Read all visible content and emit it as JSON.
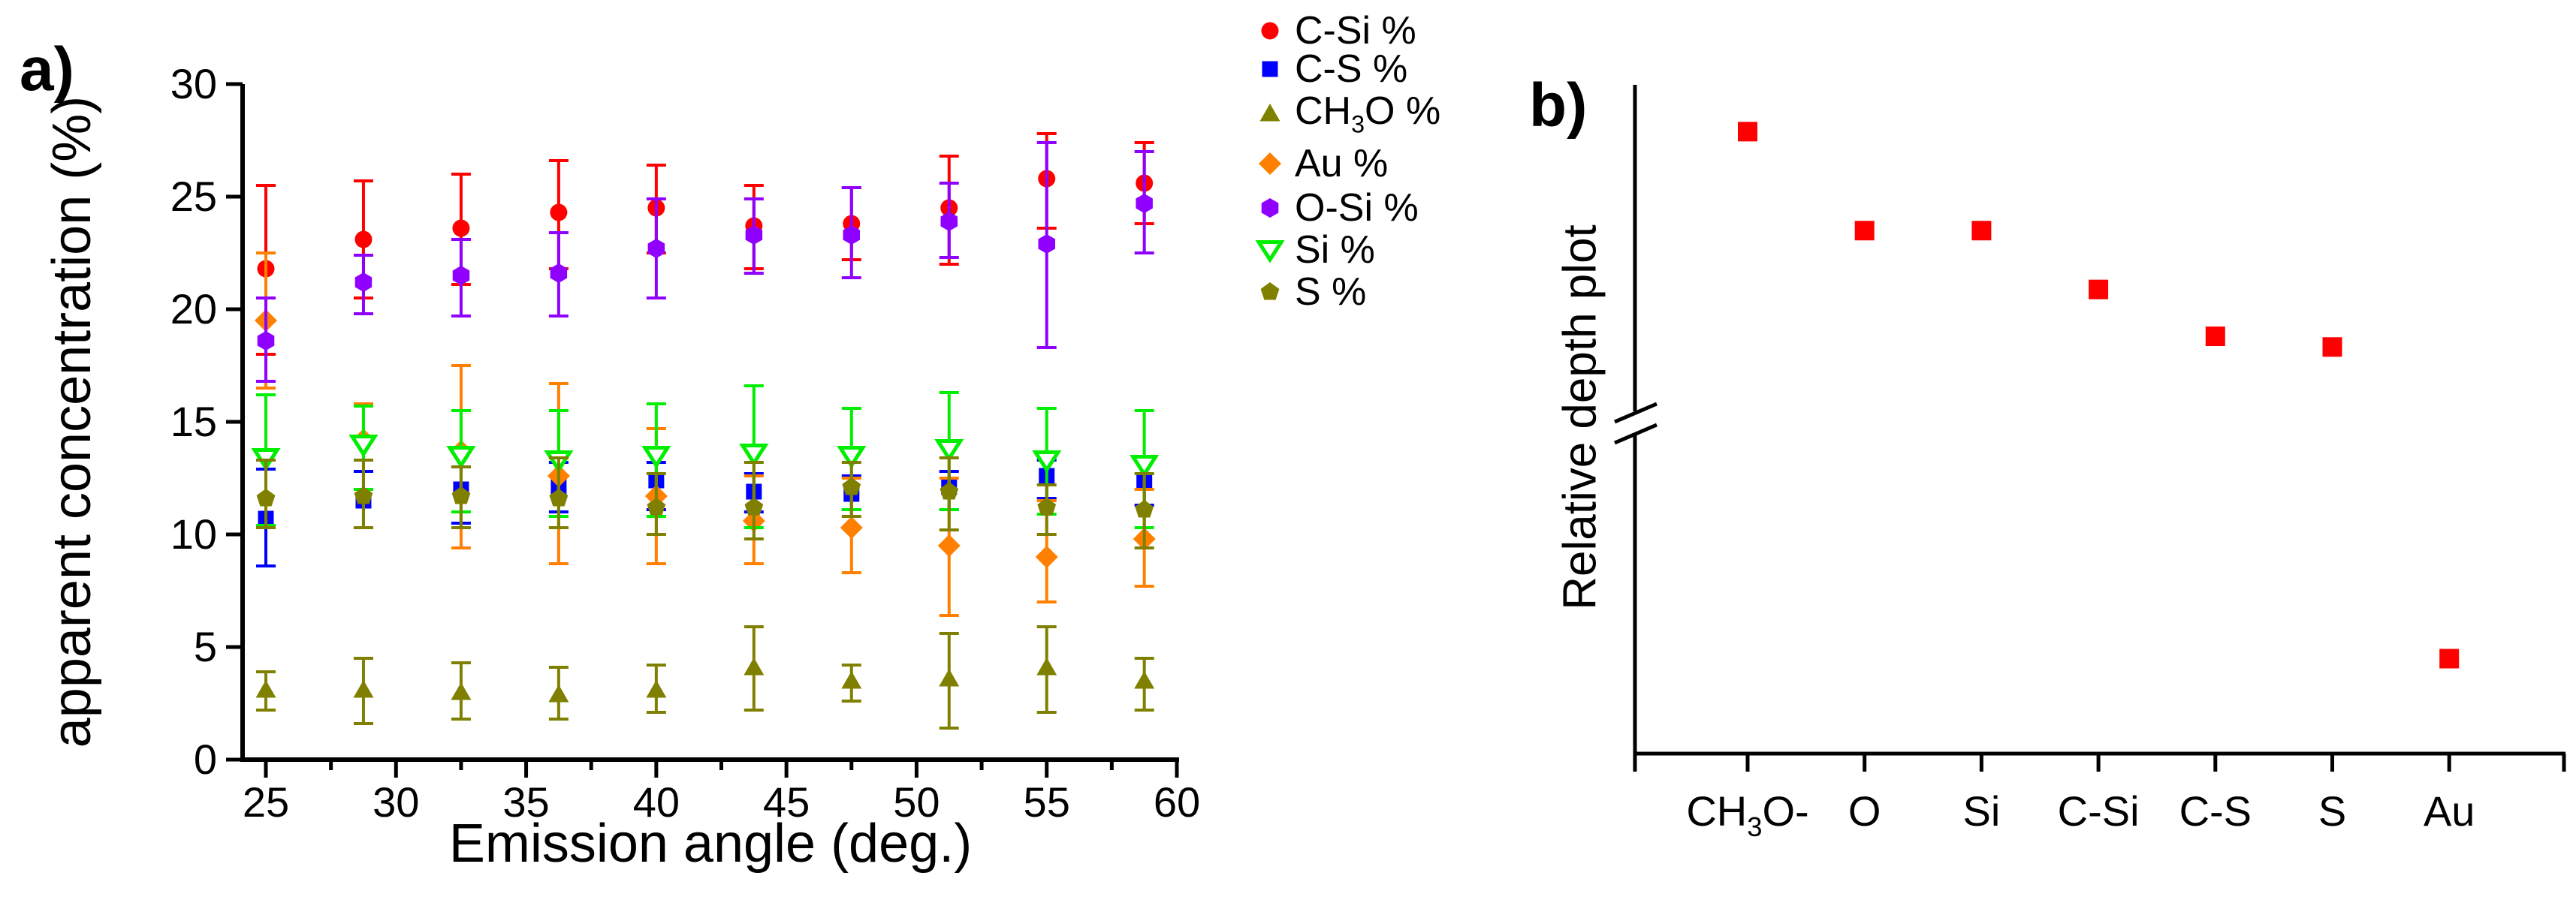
{
  "panel_a": {
    "panel_label": "a)",
    "xlabel": "Emission angle (deg.)",
    "ylabel": "apparent concentration (%)"
  },
  "panel_b": {
    "panel_label": "b)",
    "ylabel": "Relative depth plot"
  },
  "chart_data": [
    {
      "id": "a",
      "type": "scatter",
      "xlabel": "Emission angle (deg.)",
      "ylabel": "apparent concentration (%)",
      "xlim": [
        24.1,
        60
      ],
      "ylim": [
        0,
        30
      ],
      "x_major_ticks": [
        25,
        30,
        35,
        40,
        45,
        50,
        55,
        60
      ],
      "x_minor_ticks": [
        27.5,
        32.5,
        37.5,
        42.5,
        47.5,
        52.5,
        57.5
      ],
      "y_major_ticks": [
        0,
        5,
        10,
        15,
        20,
        25,
        30
      ],
      "grid": false,
      "legend_position": "outside-top-right",
      "x": [
        25,
        28.75,
        32.5,
        36.25,
        40,
        43.75,
        47.5,
        51.25,
        55,
        58.75
      ],
      "series": [
        {
          "name": "C-Si %",
          "marker": "circle",
          "color": "#FF0000",
          "open": false,
          "values": [
            21.8,
            23.1,
            23.6,
            24.3,
            24.5,
            23.7,
            23.8,
            24.5,
            25.8,
            25.6
          ],
          "err_plus": [
            3.7,
            2.6,
            2.4,
            2.3,
            1.9,
            1.8,
            1.6,
            2.3,
            2.0,
            1.8
          ],
          "err_minus": [
            3.8,
            2.6,
            2.5,
            2.5,
            2.0,
            1.9,
            1.6,
            2.5,
            2.2,
            1.8
          ]
        },
        {
          "name": "C-S %",
          "marker": "square",
          "color": "#0000FF",
          "open": false,
          "values": [
            10.7,
            11.5,
            12.0,
            12.1,
            12.4,
            11.9,
            11.8,
            12.1,
            12.6,
            12.3
          ],
          "err_plus": [
            2.2,
            1.3,
            1.0,
            1.1,
            0.8,
            0.8,
            0.8,
            0.7,
            0.7,
            1.0
          ],
          "err_minus": [
            2.1,
            1.2,
            1.5,
            1.1,
            1.3,
            0.9,
            0.7,
            1.0,
            1.0,
            1.0
          ]
        },
        {
          "name": "CH3O %",
          "marker": "triangle-up",
          "color": "#808000",
          "open": false,
          "values": [
            3.1,
            3.1,
            3.0,
            2.9,
            3.1,
            4.1,
            3.5,
            3.6,
            4.1,
            3.5
          ],
          "err_plus": [
            0.8,
            1.4,
            1.3,
            1.2,
            1.1,
            1.8,
            0.7,
            2.0,
            1.8,
            1.0
          ],
          "err_minus": [
            0.9,
            1.5,
            1.2,
            1.1,
            1.0,
            1.9,
            0.9,
            2.2,
            2.0,
            1.3
          ]
        },
        {
          "name": "Au %",
          "marker": "diamond",
          "color": "#FF8000",
          "open": false,
          "values": [
            19.5,
            14.2,
            13.7,
            12.6,
            11.7,
            10.6,
            10.3,
            9.5,
            9.0,
            9.8
          ],
          "err_plus": [
            3.0,
            1.6,
            3.8,
            4.1,
            3.0,
            2.0,
            2.2,
            3.0,
            2.5,
            2.2
          ],
          "err_minus": [
            3.0,
            2.2,
            4.3,
            3.9,
            3.0,
            1.9,
            2.0,
            3.1,
            2.0,
            2.1
          ]
        },
        {
          "name": "O-Si %",
          "marker": "hexagon",
          "color": "#8F00FF",
          "open": false,
          "values": [
            18.6,
            21.2,
            21.5,
            21.6,
            22.7,
            23.3,
            23.3,
            23.9,
            22.9,
            24.7
          ],
          "err_plus": [
            1.9,
            1.2,
            1.6,
            1.8,
            2.2,
            1.6,
            2.1,
            1.7,
            4.5,
            2.3
          ],
          "err_minus": [
            1.8,
            1.4,
            1.8,
            1.9,
            2.2,
            1.7,
            1.9,
            1.6,
            4.6,
            2.2
          ]
        },
        {
          "name": "Si %",
          "marker": "triangle-down",
          "color": "#00EE00",
          "open": true,
          "values": [
            13.4,
            14.0,
            13.5,
            13.3,
            13.5,
            13.6,
            13.5,
            13.8,
            13.3,
            13.1
          ],
          "err_plus": [
            2.8,
            1.7,
            2.0,
            2.2,
            2.3,
            3.0,
            2.1,
            2.5,
            2.3,
            2.4
          ],
          "err_minus": [
            3.0,
            2.0,
            2.5,
            2.5,
            2.7,
            3.3,
            2.4,
            2.7,
            2.4,
            2.8
          ]
        },
        {
          "name": "S %",
          "marker": "pentagon",
          "color": "#808000",
          "open": false,
          "values": [
            11.6,
            11.7,
            11.7,
            11.6,
            11.2,
            11.2,
            12.1,
            11.9,
            11.2,
            11.1
          ],
          "err_plus": [
            1.7,
            1.6,
            1.3,
            1.8,
            1.5,
            2.0,
            1.1,
            1.5,
            1.0,
            1.6
          ],
          "err_minus": [
            1.3,
            1.4,
            1.4,
            1.3,
            1.2,
            1.4,
            1.3,
            1.7,
            1.2,
            1.7
          ]
        }
      ]
    },
    {
      "id": "b",
      "type": "scatter",
      "ylabel": "Relative depth plot",
      "categories": [
        "CH3O-",
        "O",
        "Si",
        "C-Si",
        "C-S",
        "S",
        "Au"
      ],
      "depth_fraction_from_top": [
        0.07,
        0.218,
        0.218,
        0.306,
        0.376,
        0.392,
        0.858
      ],
      "marker": "square",
      "marker_color": "#FF0000",
      "y_axis_break": true,
      "y_tick_labels": []
    }
  ]
}
